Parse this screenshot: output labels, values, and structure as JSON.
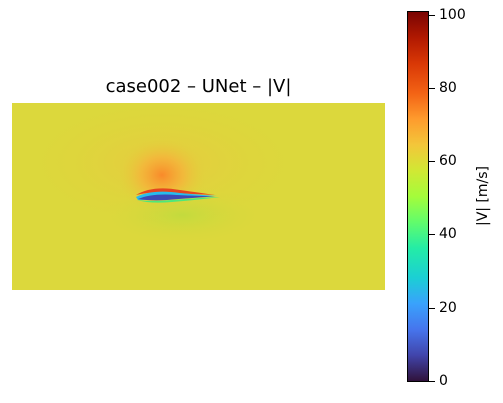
{
  "plot": {
    "title": "case002 – UNet – |V|",
    "colorbar_label": "|V| [m/s]",
    "colorbar_range": [
      0,
      101
    ],
    "colorbar_ticks": [
      "0",
      "20",
      "40",
      "60",
      "80",
      "100"
    ],
    "colormap": "turbo",
    "background_color": "#dcd83c"
  }
}
